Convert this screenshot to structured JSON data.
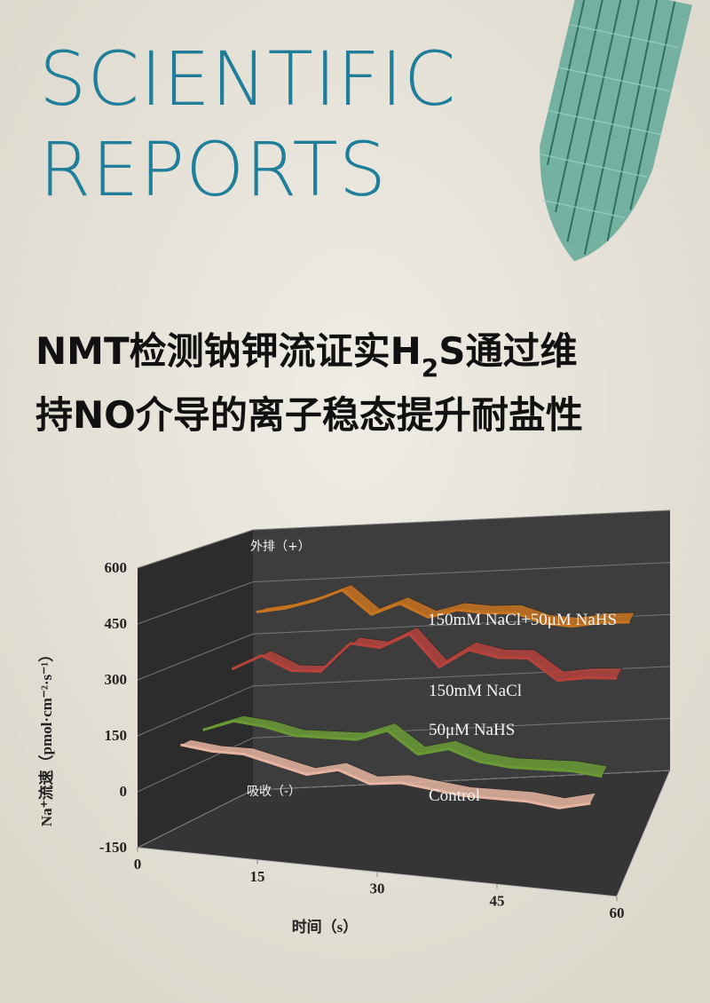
{
  "header": {
    "journal_lines": [
      "SCIENTIFIC",
      "REPORTS"
    ]
  },
  "headline": {
    "line1_before": "NMT检测钠钾流证实H",
    "line1_sub": "2",
    "line1_after": "S通过维",
    "line2": "持NO介导的离子稳态提升耐盐性"
  },
  "chart_data": {
    "type": "line",
    "y_label": "Na⁺流速（pmol·cm⁻²·s⁻¹）",
    "x_label": "时间（s）",
    "annotations": [
      "外排（+）",
      "吸收（-）"
    ],
    "xlim": [
      0,
      60
    ],
    "xticks": [
      0,
      15,
      30,
      45,
      60
    ],
    "ylim": [
      -150,
      600
    ],
    "yticks": [
      -150,
      0,
      150,
      300,
      450,
      600
    ],
    "grid": true,
    "x": [
      4,
      8,
      12,
      16,
      20,
      24,
      28,
      32,
      36,
      40,
      44,
      48,
      52,
      56
    ],
    "series": [
      {
        "name": "150mM NaCl+50μM NaHS",
        "color": "#c8741f",
        "values": [
          390,
          400,
          420,
          450,
          380,
          410,
          370,
          390,
          380,
          380,
          350,
          340,
          350,
          350
        ]
      },
      {
        "name": "150mM NaCl",
        "color": "#b8423c",
        "values": [
          260,
          300,
          260,
          260,
          340,
          330,
          370,
          280,
          330,
          310,
          310,
          250,
          260,
          260
        ]
      },
      {
        "name": "50μM NaHS",
        "color": "#6a9a35",
        "values": [
          130,
          160,
          150,
          130,
          130,
          130,
          160,
          100,
          120,
          90,
          80,
          80,
          80,
          70
        ]
      },
      {
        "name": "Control",
        "color": "#e6b4a0",
        "values": [
          120,
          110,
          110,
          90,
          70,
          90,
          60,
          70,
          60,
          50,
          50,
          50,
          40,
          60
        ]
      }
    ]
  }
}
